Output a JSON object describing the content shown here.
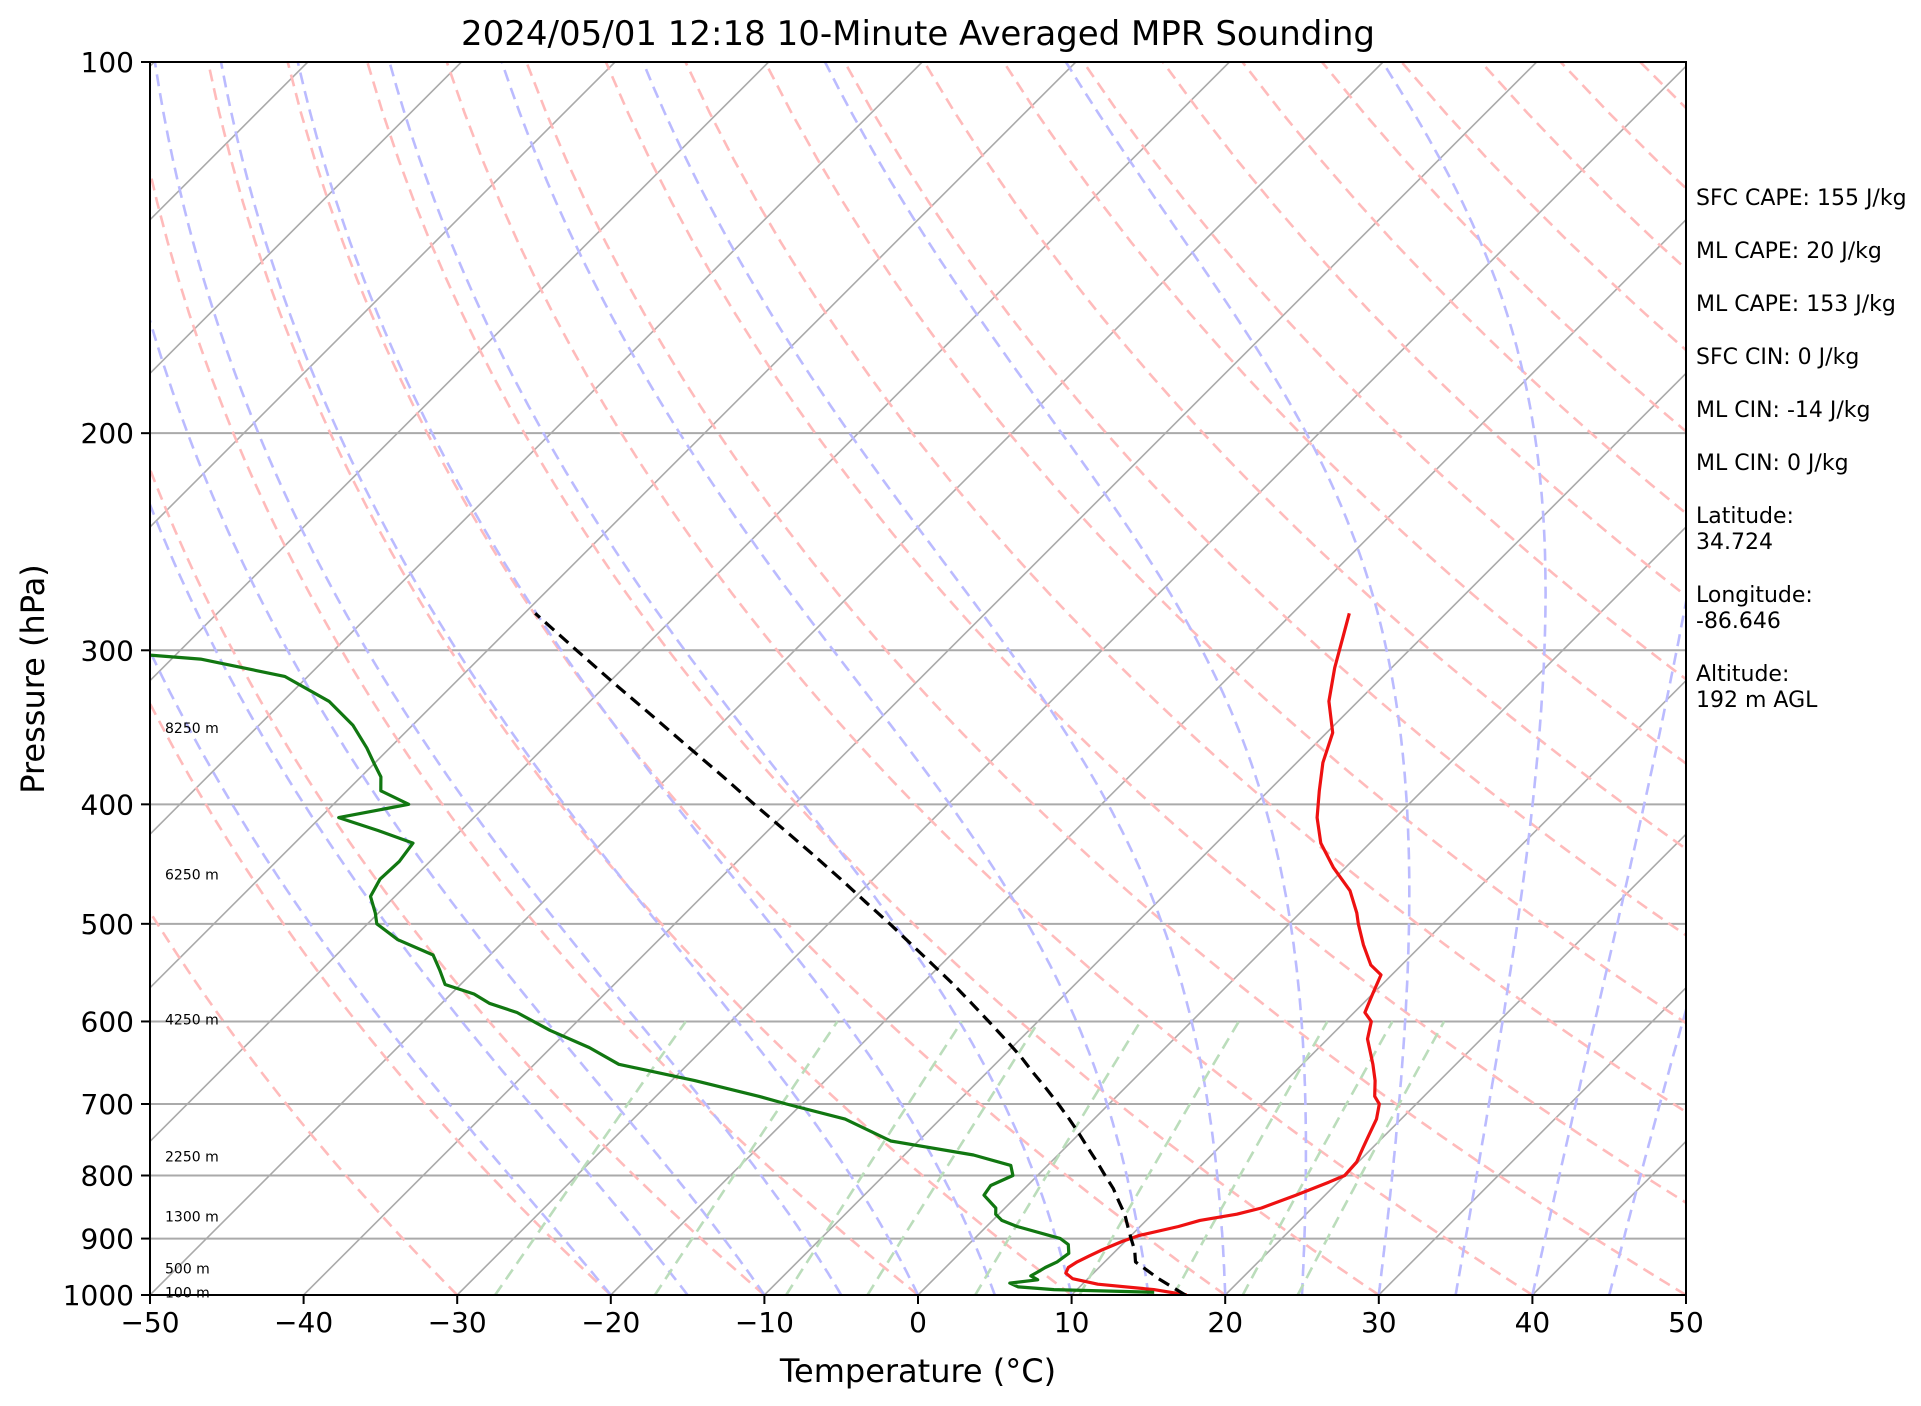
{
  "chart_data": {
    "type": "line",
    "title": "2024/05/01 12:18 10-Minute Averaged MPR Sounding",
    "xlabel": "Temperature (°C)",
    "ylabel": "Pressure (hPa)",
    "xlim": [
      -50,
      50
    ],
    "ylim": [
      1000,
      100
    ],
    "y_scale": "log",
    "skew": "skew-T (isotherms inclined)",
    "grid": true,
    "x_ticks": [
      "−50",
      "−40",
      "−30",
      "−20",
      "−10",
      "0",
      "10",
      "20",
      "30",
      "40",
      "50"
    ],
    "y_ticks": [
      "100",
      "200",
      "300",
      "400",
      "500",
      "600",
      "700",
      "800",
      "900",
      "1000"
    ],
    "altitude_labels": [
      {
        "label": "100 m",
        "p": 995
      },
      {
        "label": "500 m",
        "p": 952
      },
      {
        "label": "1300 m",
        "p": 864
      },
      {
        "label": "2250 m",
        "p": 772
      },
      {
        "label": "4250 m",
        "p": 598
      },
      {
        "label": "6250 m",
        "p": 456
      },
      {
        "label": "8250 m",
        "p": 347
      }
    ],
    "series": [
      {
        "kind": "temperature",
        "color": "#ee1111",
        "style": "solid",
        "points": [
          [
            1000,
            17.5
          ],
          [
            990,
            15
          ],
          [
            980,
            11
          ],
          [
            970,
            9
          ],
          [
            960,
            8.2
          ],
          [
            950,
            8
          ],
          [
            940,
            8.2
          ],
          [
            930,
            8.6
          ],
          [
            920,
            9.0
          ],
          [
            905,
            9.8
          ],
          [
            895,
            10.5
          ],
          [
            880,
            12.5
          ],
          [
            870,
            13.5
          ],
          [
            860,
            15.5
          ],
          [
            850,
            16.7
          ],
          [
            830,
            18.1
          ],
          [
            810,
            19.4
          ],
          [
            800,
            20.0
          ],
          [
            780,
            19.9
          ],
          [
            760,
            19.4
          ],
          [
            740,
            18.9
          ],
          [
            720,
            18.4
          ],
          [
            700,
            17.6
          ],
          [
            690,
            16.8
          ],
          [
            670,
            15.8
          ],
          [
            650,
            14.6
          ],
          [
            620,
            12.6
          ],
          [
            600,
            11.7
          ],
          [
            590,
            10.7
          ],
          [
            570,
            10.0
          ],
          [
            550,
            9.3
          ],
          [
            540,
            8.0
          ],
          [
            520,
            6.2
          ],
          [
            500,
            4.5
          ],
          [
            490,
            3.7
          ],
          [
            470,
            1.8
          ],
          [
            450,
            -0.8
          ],
          [
            430,
            -3.2
          ],
          [
            410,
            -5.1
          ],
          [
            390,
            -6.7
          ],
          [
            370,
            -8.3
          ],
          [
            350,
            -9.6
          ],
          [
            330,
            -11.9
          ],
          [
            310,
            -13.7
          ],
          [
            290,
            -15.4
          ],
          [
            280,
            -16.3
          ]
        ]
      },
      {
        "kind": "dewpoint",
        "color": "#117711",
        "style": "solid",
        "points": [
          [
            995,
            15.2
          ],
          [
            990,
            8.5
          ],
          [
            985,
            6
          ],
          [
            978,
            5.2
          ],
          [
            972,
            6.8
          ],
          [
            965,
            6.1
          ],
          [
            958,
            6.3
          ],
          [
            950,
            6.5
          ],
          [
            940,
            6.9
          ],
          [
            925,
            7.1
          ],
          [
            910,
            6.5
          ],
          [
            900,
            5.6
          ],
          [
            880,
            2.0
          ],
          [
            870,
            0.6
          ],
          [
            860,
            -0.2
          ],
          [
            850,
            -0.6
          ],
          [
            830,
            -2.2
          ],
          [
            815,
            -2.4
          ],
          [
            800,
            -1.6
          ],
          [
            785,
            -2.4
          ],
          [
            770,
            -5.5
          ],
          [
            750,
            -11.8
          ],
          [
            720,
            -16.2
          ],
          [
            700,
            -21.0
          ],
          [
            690,
            -23.3
          ],
          [
            670,
            -28.5
          ],
          [
            650,
            -34.5
          ],
          [
            630,
            -37.5
          ],
          [
            610,
            -41.2
          ],
          [
            590,
            -44.5
          ],
          [
            580,
            -46.9
          ],
          [
            570,
            -48.5
          ],
          [
            560,
            -51.0
          ],
          [
            545,
            -52.3
          ],
          [
            530,
            -53.7
          ],
          [
            515,
            -57.0
          ],
          [
            500,
            -59.4
          ],
          [
            490,
            -60.2
          ],
          [
            475,
            -61.6
          ],
          [
            460,
            -62.1
          ],
          [
            445,
            -62.0
          ],
          [
            430,
            -62.3
          ],
          [
            420,
            -65.4
          ],
          [
            410,
            -68.8
          ],
          [
            400,
            -65.1
          ],
          [
            390,
            -67.8
          ],
          [
            380,
            -68.7
          ],
          [
            370,
            -70.1
          ],
          [
            360,
            -71.5
          ],
          [
            345,
            -73.9
          ],
          [
            330,
            -77.0
          ],
          [
            315,
            -81.5
          ],
          [
            305,
            -88.1
          ],
          [
            300,
            -96.0
          ]
        ]
      },
      {
        "kind": "parcel",
        "color": "#000000",
        "style": "dashed",
        "points": [
          [
            1000,
            17.4
          ],
          [
            970,
            14.6
          ],
          [
            940,
            12.0
          ],
          [
            920,
            11.2
          ],
          [
            900,
            10.2
          ],
          [
            880,
            9.2
          ],
          [
            860,
            8.2
          ],
          [
            840,
            7.0
          ],
          [
            820,
            5.8
          ],
          [
            800,
            4.4
          ],
          [
            780,
            3.0
          ],
          [
            760,
            1.5
          ],
          [
            740,
            0.0
          ],
          [
            720,
            -1.6
          ],
          [
            700,
            -3.3
          ],
          [
            680,
            -5.1
          ],
          [
            660,
            -7.0
          ],
          [
            640,
            -8.9
          ],
          [
            620,
            -11.0
          ],
          [
            600,
            -13.2
          ],
          [
            580,
            -15.5
          ],
          [
            560,
            -17.9
          ],
          [
            540,
            -20.5
          ],
          [
            520,
            -23.2
          ],
          [
            500,
            -26.0
          ],
          [
            480,
            -29.0
          ],
          [
            460,
            -32.1
          ],
          [
            440,
            -35.4
          ],
          [
            420,
            -38.9
          ],
          [
            400,
            -42.6
          ],
          [
            380,
            -46.4
          ],
          [
            360,
            -50.5
          ],
          [
            340,
            -54.8
          ],
          [
            320,
            -59.4
          ],
          [
            300,
            -64.2
          ],
          [
            280,
            -69.3
          ]
        ]
      }
    ],
    "background_lines": {
      "isotherms": {
        "color": "#aaaaaa",
        "style": "solid"
      },
      "dry_adiabats": {
        "color": "#ffbbbb",
        "style": "dashed"
      },
      "moist_adiabats": {
        "color": "#bbbbff",
        "style": "dashed"
      },
      "mixing_ratio": {
        "color": "#bbddbb",
        "style": "dashed"
      }
    }
  },
  "info_panel": [
    "SFC CAPE: 155 J/kg",
    "ML CAPE: 20 J/kg",
    "ML CAPE: 153 J/kg",
    "SFC CIN: 0 J/kg",
    "ML CIN: -14 J/kg",
    "ML CIN: 0 J/kg",
    "Latitude:\n34.724",
    "Longitude:\n-86.646",
    "Altitude:\n192 m AGL"
  ]
}
